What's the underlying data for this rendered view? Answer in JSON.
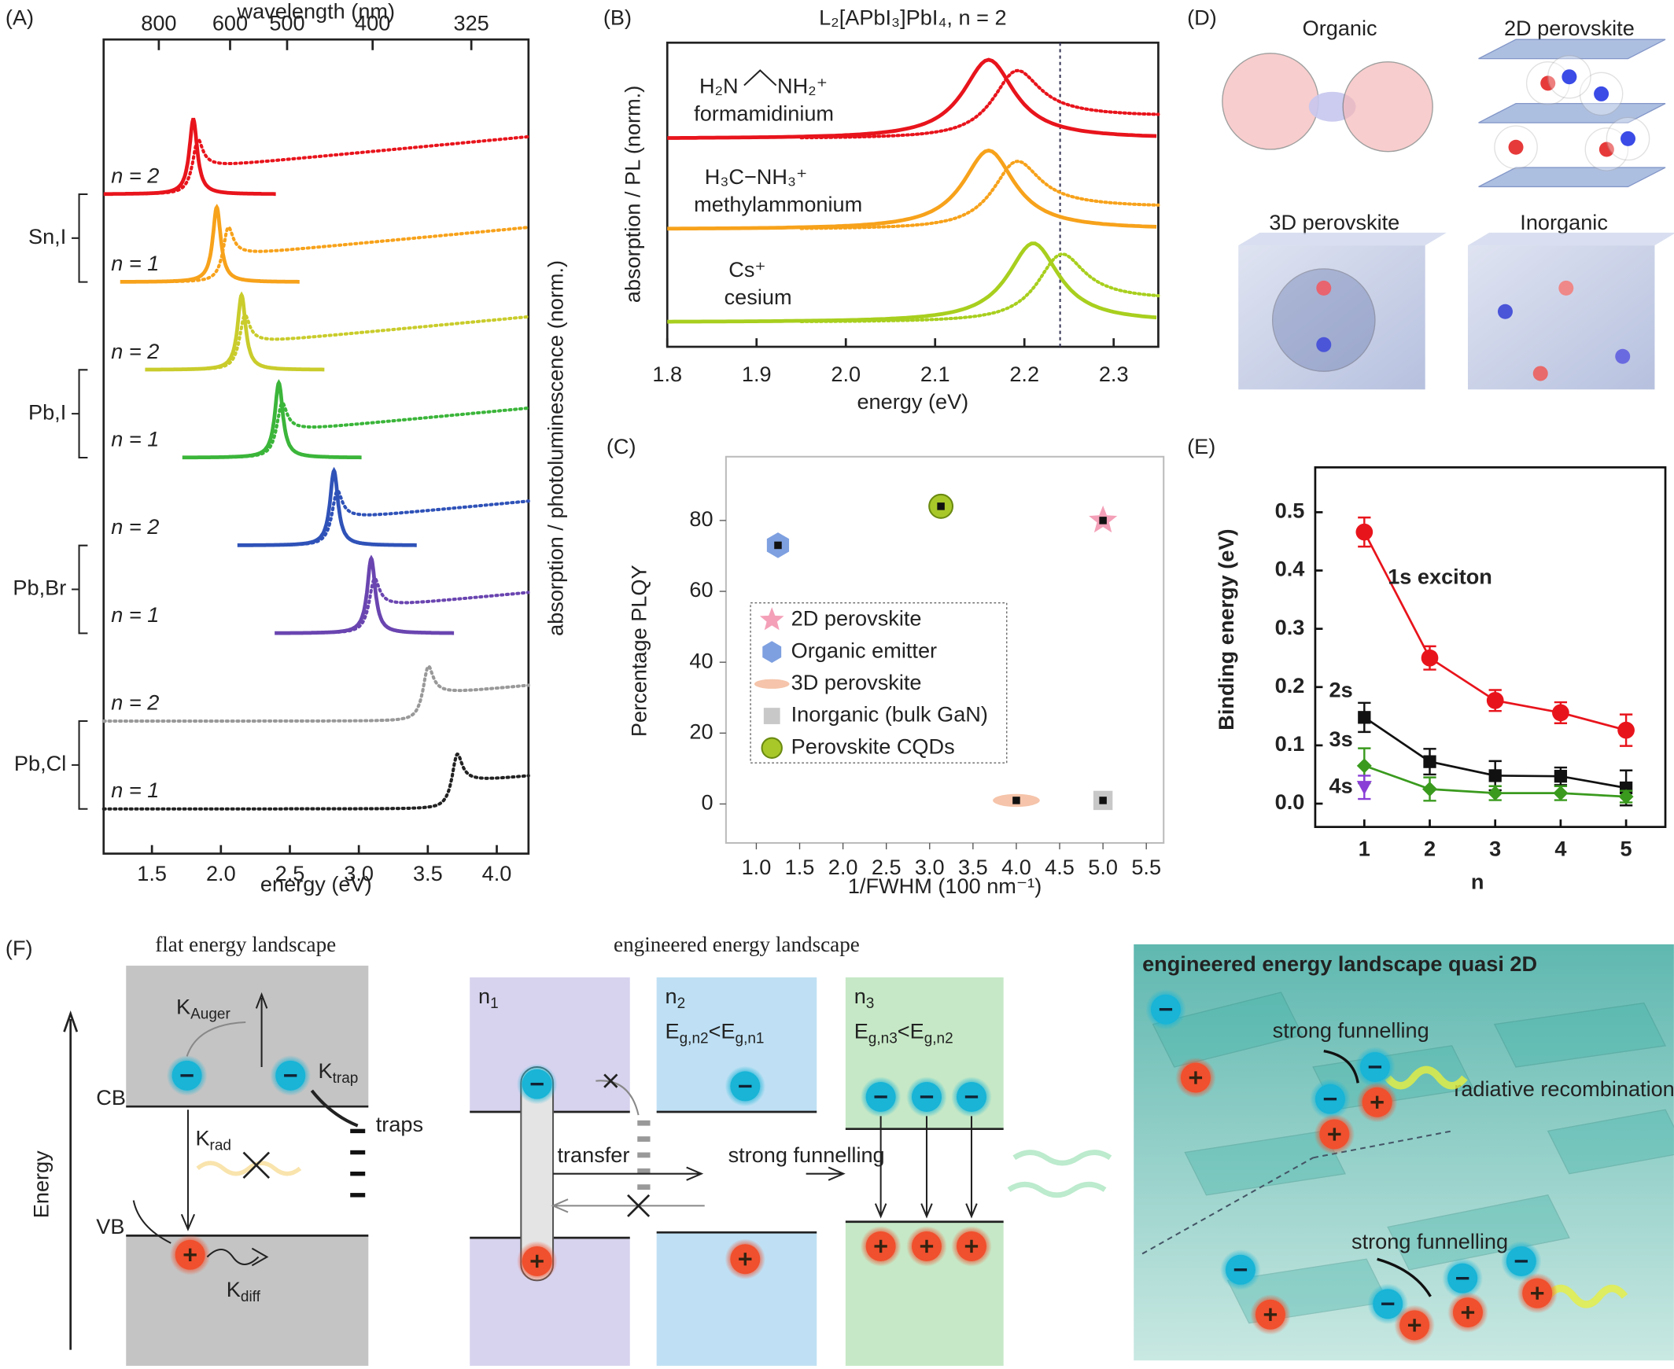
{
  "panel_labels": [
    "(A)",
    "(B)",
    "(C)",
    "(D)",
    "(E)",
    "(F)"
  ],
  "chart_data": [
    {
      "type": "line",
      "xlabel": "energy (eV)",
      "ylabel": "absorption / photoluminescence (norm.)",
      "top_axis_label": "wavelength (nm)",
      "xlim": [
        1.15,
        4.23
      ],
      "xticks": [
        1.5,
        {
          "value": 2,
          "label": "2.0"
        },
        2.5,
        {
          "value": 3,
          "label": "3.0"
        },
        3.5,
        {
          "value": 4,
          "label": "4.0"
        }
      ],
      "top_ticks": [
        800,
        600,
        500,
        400,
        325
      ],
      "groups": [
        "Sn,I",
        "Pb,I",
        "Pb,Br",
        "Pb,Cl"
      ],
      "series": [
        {
          "name": "n = 2",
          "color": "#e8141c",
          "pl_peak": 1.8,
          "abs_peak": 1.83
        },
        {
          "name": "n = 1",
          "color": "#f7a21b",
          "pl_peak": 1.97,
          "abs_peak": 2.05
        },
        {
          "name": "n = 2",
          "color": "#c9cc2b",
          "pl_peak": 2.15,
          "abs_peak": 2.17
        },
        {
          "name": "n = 1",
          "color": "#3bb53a",
          "pl_peak": 2.42,
          "abs_peak": 2.44
        },
        {
          "name": "n = 2",
          "color": "#2f52b8",
          "pl_peak": 2.82,
          "abs_peak": 2.84
        },
        {
          "name": "n = 1",
          "color": "#6a45b0",
          "pl_peak": 3.09,
          "abs_peak": 3.11
        },
        {
          "name": "n = 2",
          "color": "#999999",
          "abs_peak": 3.5
        },
        {
          "name": "n = 1",
          "color": "#222222",
          "abs_peak": 3.71
        }
      ]
    },
    {
      "type": "line",
      "title": "L₂[APbI₃]PbI₄, n = 2",
      "xlabel": "energy (eV)",
      "ylabel": "absorption / PL (norm.)",
      "xlim": [
        1.8,
        2.35
      ],
      "xticks": [
        1.8,
        1.9,
        {
          "value": 2,
          "label": "2.0"
        },
        2.1,
        2.2,
        2.3
      ],
      "vline": 2.24,
      "series": [
        {
          "name": "formamidinium",
          "formula": [
            "H₂N",
            "NH₂⁺"
          ],
          "color": "#e8141c",
          "pl_peak": 2.16,
          "abs_peak": 2.19
        },
        {
          "name": "methylammonium",
          "formula": [
            "H₃C−NH₃⁺"
          ],
          "color": "#f7a21b",
          "pl_peak": 2.16,
          "abs_peak": 2.19
        },
        {
          "name": "cesium",
          "formula": [
            "Cs⁺"
          ],
          "color": "#a8cf1e",
          "pl_peak": 2.21,
          "abs_peak": 2.24
        }
      ]
    },
    {
      "type": "scatter",
      "xlabel": "1/FWHM (100 nm⁻¹)",
      "ylabel": "Percentage PLQY",
      "xlim": [
        0.65,
        5.7
      ],
      "ylim": [
        -11,
        98
      ],
      "xticks": [
        {
          "value": 1,
          "label": "1.0"
        },
        1.5,
        {
          "value": 2,
          "label": "2.0"
        },
        2.5,
        {
          "value": 3,
          "label": "3.0"
        },
        3.5,
        {
          "value": 4,
          "label": "4.0"
        },
        4.5,
        {
          "value": 5,
          "label": "5.0"
        },
        5.5
      ],
      "yticks": [
        0,
        20,
        40,
        60,
        80
      ],
      "legend": "lower left",
      "series": [
        {
          "name": "2D perovskite",
          "marker": "star",
          "color": "#f4a0b8",
          "label_color": "#e0607f",
          "x": [
            5.0
          ],
          "values": [
            80
          ]
        },
        {
          "name": "Organic emitter",
          "marker": "hexagon",
          "color": "#7ea0e0",
          "label_color": "#5a7fcf",
          "x": [
            1.25
          ],
          "values": [
            73
          ]
        },
        {
          "name": "3D perovskite",
          "marker": "ellipse",
          "color": "#f5c4aa",
          "label_color": "#f0b8a0",
          "x": [
            4.0
          ],
          "values": [
            1
          ]
        },
        {
          "name": "Inorganic (bulk GaN)",
          "marker": "square",
          "color": "#c8c8c8",
          "label_color": "#9a9a9a",
          "x": [
            5.0
          ],
          "values": [
            1
          ]
        },
        {
          "name": "Perovskite CQDs",
          "marker": "circle",
          "color": "#a8c82a",
          "label_color": "#2e6b1e",
          "x": [
            3.13
          ],
          "values": [
            84
          ]
        }
      ]
    },
    {
      "type": "line",
      "xlabel": "n",
      "ylabel": "Binding energy (eV)",
      "xlim": [
        0.25,
        5.6
      ],
      "ylim": [
        -0.04,
        0.577
      ],
      "xticks": [
        1,
        2,
        3,
        4,
        5
      ],
      "yticks": [
        {
          "value": 0,
          "label": "0.0"
        },
        0.1,
        0.2,
        0.3,
        0.4,
        0.5
      ],
      "series": [
        {
          "name": "1s exciton",
          "color": "#e8141c",
          "marker": "circle",
          "x": [
            1,
            2,
            3,
            4,
            5
          ],
          "values": [
            0.466,
            0.25,
            0.177,
            0.156,
            0.126
          ],
          "errors": [
            0.025,
            0.02,
            0.018,
            0.018,
            0.027
          ]
        },
        {
          "name": "2s",
          "color": "#111111",
          "marker": "square",
          "x": [
            1,
            2,
            3,
            4,
            5
          ],
          "values": [
            0.148,
            0.072,
            0.048,
            0.047,
            0.027
          ],
          "errors": [
            0.025,
            0.022,
            0.025,
            0.015,
            0.03
          ]
        },
        {
          "name": "3s",
          "color": "#3a9a1e",
          "marker": "diamond",
          "x": [
            1,
            2,
            3,
            4,
            5
          ],
          "values": [
            0.065,
            0.025,
            0.018,
            0.018,
            0.012
          ],
          "errors": [
            0.03,
            0.02,
            0.012,
            0.012,
            0.01
          ]
        },
        {
          "name": "4s",
          "color": "#8a3fd6",
          "marker": "triangle",
          "x": [
            1
          ],
          "values": [
            0.028
          ],
          "errors": [
            0.02
          ]
        }
      ]
    }
  ],
  "diagram_d": {
    "labels": [
      "Organic",
      "2D perovskite",
      "3D perovskite",
      "Inorganic"
    ]
  },
  "diagram_f": {
    "flat_title": "flat energy landscape",
    "k_auger": {
      "main": "K",
      "sub": "Auger"
    },
    "k_trap": {
      "main": "K",
      "sub": "trap"
    },
    "k_rad": {
      "main": "K",
      "sub": "rad"
    },
    "k_diff": {
      "main": "K",
      "sub": "diff"
    },
    "cb": "CB",
    "vb": "VB",
    "traps": "traps",
    "axis": "Energy",
    "engineered_title": "engineered energy landscape",
    "columns": [
      {
        "label": {
          "main": "n",
          "sub": "1"
        }
      },
      {
        "label": {
          "main": "n",
          "sub": "2"
        },
        "condition": [
          "E",
          "g,n2",
          "<E",
          "g,n1"
        ]
      },
      {
        "label": {
          "main": "n",
          "sub": "3"
        },
        "condition": [
          "E",
          "g,n3",
          "<E",
          "g,n2"
        ]
      }
    ],
    "transfer": "transfer",
    "funnelling": "strong funnelling",
    "quasi": {
      "title": "engineered energy landscape quasi 2D",
      "labels": [
        "strong funnelling",
        "radiative recombination",
        "strong funnelling"
      ]
    }
  }
}
